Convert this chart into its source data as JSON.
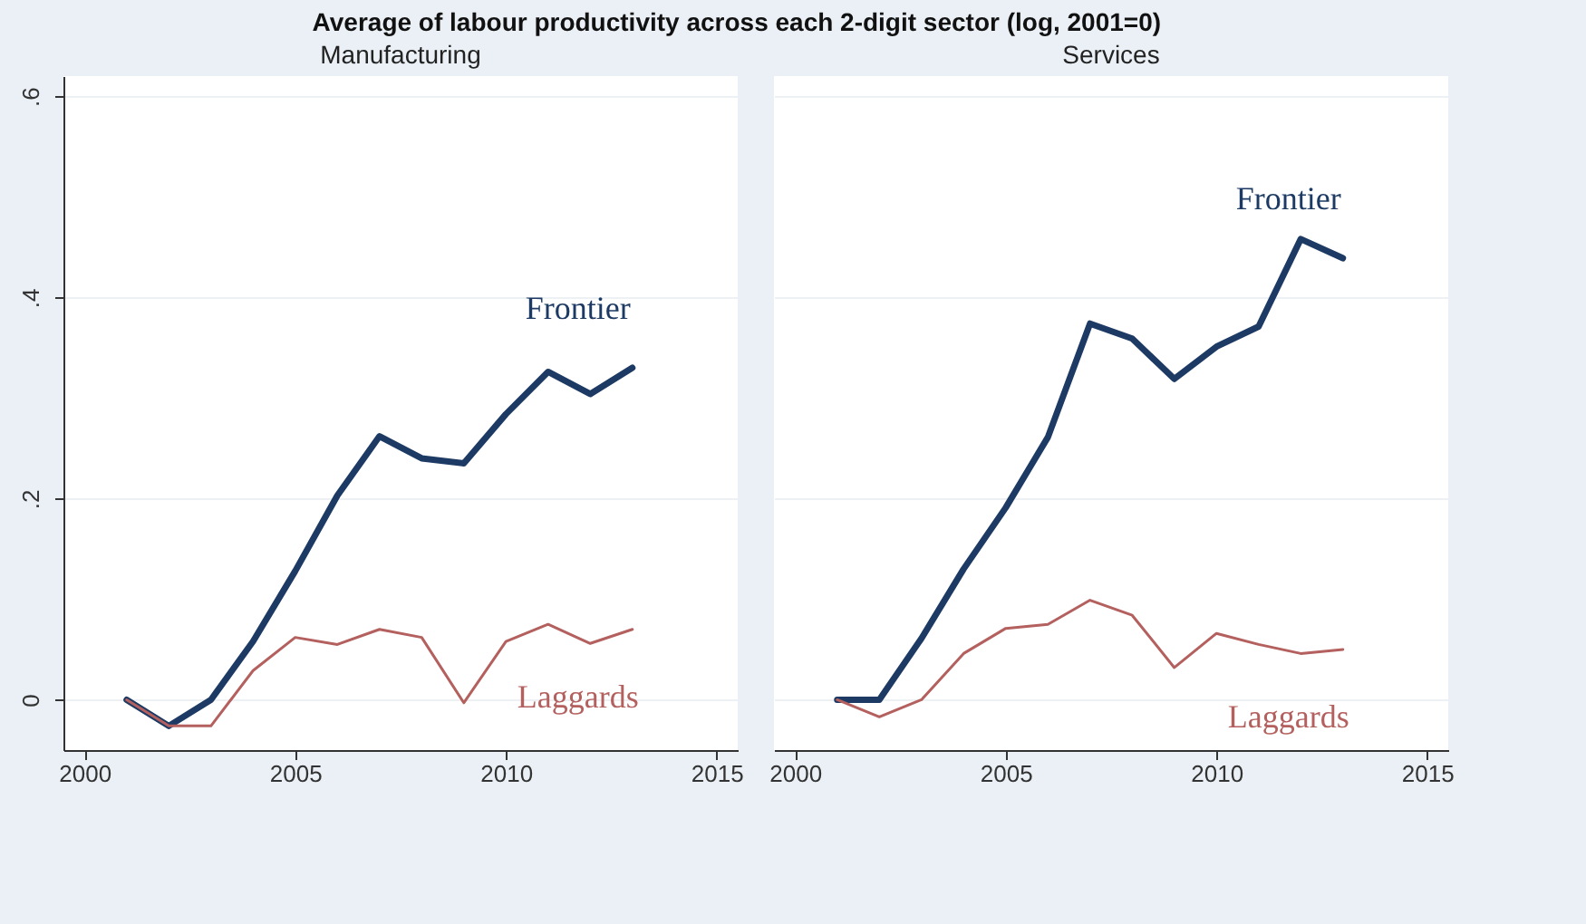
{
  "chart_data": [
    {
      "type": "line",
      "title": "Average of labour productivity across each 2-digit sector (log, 2001=0)",
      "subtitle": "Manufacturing",
      "x": [
        2001,
        2002,
        2003,
        2004,
        2005,
        2006,
        2007,
        2008,
        2009,
        2010,
        2011,
        2012,
        2013
      ],
      "series": [
        {
          "name": "Frontier",
          "color": "#1c3a63",
          "values": [
            0,
            -0.026,
            0,
            0.058,
            0.128,
            0.203,
            0.262,
            0.24,
            0.235,
            0.284,
            0.326,
            0.304,
            0.33
          ]
        },
        {
          "name": "Laggards",
          "color": "#b3605e",
          "values": [
            0,
            -0.026,
            -0.026,
            0.029,
            0.062,
            0.055,
            0.07,
            0.062,
            -0.003,
            0.058,
            0.075,
            0.056,
            0.07
          ]
        }
      ],
      "xlim": [
        1999.5,
        2015.5
      ],
      "xticks": [
        2000,
        2005,
        2010,
        2015
      ],
      "ylim": [
        -0.05,
        0.62
      ],
      "yticks": [
        0,
        {
          "value": 0.2,
          "label": ".2"
        },
        {
          "value": 0.4,
          "label": ".4"
        },
        {
          "value": 0.6,
          "label": ".6"
        }
      ],
      "grid": "y",
      "legend": false
    },
    {
      "type": "line",
      "subtitle": "Services",
      "x": [
        2001,
        2002,
        2003,
        2004,
        2005,
        2006,
        2007,
        2008,
        2009,
        2010,
        2011,
        2012,
        2013
      ],
      "series": [
        {
          "name": "Frontier",
          "color": "#1c3a63",
          "values": [
            0,
            0,
            0.061,
            0.13,
            0.191,
            0.261,
            0.374,
            0.359,
            0.319,
            0.351,
            0.371,
            0.458,
            0.439
          ]
        },
        {
          "name": "Laggards",
          "color": "#b3605e",
          "values": [
            0,
            -0.017,
            0,
            0.046,
            0.071,
            0.075,
            0.099,
            0.084,
            0.032,
            0.066,
            0.055,
            0.046,
            0.05
          ]
        }
      ],
      "xlim": [
        1999.5,
        2015.5
      ],
      "xticks": [
        2000,
        2005,
        2010,
        2015
      ],
      "ylim": [
        -0.05,
        0.62
      ],
      "yticks": [
        0,
        0.2,
        0.4,
        0.6
      ],
      "grid": "y",
      "legend": false,
      "tick_labels": "x"
    }
  ]
}
